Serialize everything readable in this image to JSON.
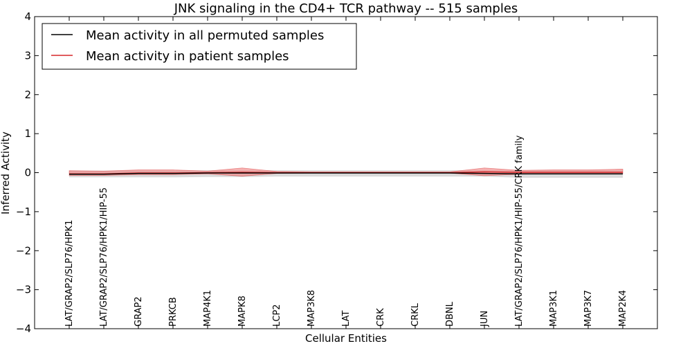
{
  "chart_data": {
    "type": "line",
    "title": "JNK signaling in the CD4+ TCR pathway -- 515 samples",
    "xlabel": "Cellular Entities",
    "ylabel": "Inferred Activity",
    "ylim": [
      -4,
      4
    ],
    "yticks": [
      "−4",
      "−3",
      "−2",
      "−1",
      "0",
      "1",
      "2",
      "3",
      "4"
    ],
    "ytick_values": [
      -4,
      -3,
      -2,
      -1,
      0,
      1,
      2,
      3,
      4
    ],
    "grid": false,
    "legend_position": "top-left",
    "categories": [
      "LAT/GRAP2/SLP76/HPK1",
      "LAT/GRAP2/SLP76/HPK1/HIP-55",
      "GRAP2",
      "PRKCB",
      "MAP4K1",
      "MAPK8",
      "LCP2",
      "MAP3K8",
      "LAT",
      "CRK",
      "CRKL",
      "DBNL",
      "JUN",
      "LAT/GRAP2/SLP76/HPK1/HIP-55/CRK family",
      "MAP3K1",
      "MAP3K7",
      "MAP2K4"
    ],
    "series": [
      {
        "name": "Mean activity in all permuted samples",
        "color": "#000000",
        "values": [
          -0.04,
          -0.04,
          -0.02,
          -0.02,
          -0.01,
          -0.01,
          -0.01,
          -0.01,
          -0.01,
          -0.01,
          -0.01,
          -0.01,
          -0.02,
          -0.03,
          -0.03,
          -0.03,
          -0.03
        ],
        "band_low": [
          -0.12,
          -0.12,
          -0.12,
          -0.12,
          -0.11,
          -0.11,
          -0.1,
          -0.1,
          -0.1,
          -0.1,
          -0.1,
          -0.1,
          -0.1,
          -0.13,
          -0.13,
          -0.13,
          -0.13
        ],
        "band_high": [
          0.05,
          0.05,
          0.05,
          0.05,
          0.06,
          0.06,
          0.06,
          0.06,
          0.06,
          0.06,
          0.06,
          0.06,
          0.06,
          0.06,
          0.06,
          0.06,
          0.06
        ],
        "band_color": "#bbbbbb"
      },
      {
        "name": "Mean activity in patient samples",
        "color": "#d62728",
        "values": [
          -0.03,
          -0.03,
          -0.01,
          -0.01,
          0.0,
          0.01,
          0.0,
          0.0,
          0.0,
          0.0,
          0.0,
          0.0,
          0.02,
          0.01,
          0.01,
          0.01,
          0.01
        ],
        "band_low": [
          -0.07,
          -0.07,
          -0.05,
          -0.05,
          -0.03,
          -0.09,
          -0.02,
          -0.01,
          -0.01,
          -0.01,
          -0.01,
          -0.01,
          -0.08,
          -0.04,
          -0.03,
          -0.03,
          -0.03
        ],
        "band_high": [
          0.05,
          0.04,
          0.07,
          0.07,
          0.04,
          0.12,
          0.03,
          0.02,
          0.02,
          0.02,
          0.02,
          0.02,
          0.12,
          0.06,
          0.07,
          0.07,
          0.09
        ],
        "band_color": "#f08080"
      }
    ]
  }
}
